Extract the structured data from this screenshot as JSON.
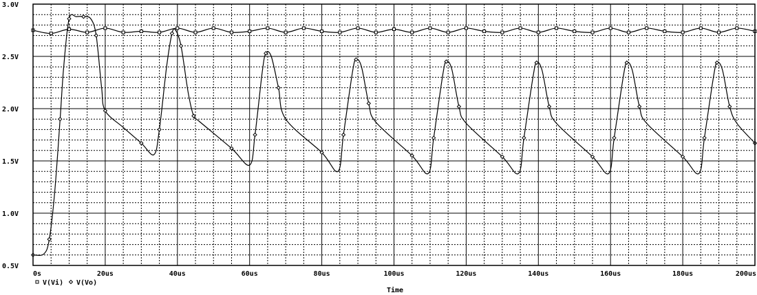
{
  "chart_data": {
    "type": "line",
    "xlabel": "Time",
    "ylabel": "",
    "xlim": [
      0,
      200
    ],
    "ylim": [
      0.5,
      3.0
    ],
    "x_unit": "us",
    "y_unit": "V",
    "grid": true,
    "legend_position": "bottom-left",
    "x_ticks": [
      "0s",
      "20us",
      "40us",
      "60us",
      "80us",
      "100us",
      "120us",
      "140us",
      "160us",
      "180us",
      "200us"
    ],
    "y_ticks": [
      "0.5V",
      "1.0V",
      "1.5V",
      "2.0V",
      "2.5V",
      "3.0V"
    ],
    "series": [
      {
        "name": "V(Vi)",
        "marker": "square",
        "x": [
          0,
          5,
          10,
          15,
          20,
          25,
          30,
          35,
          40,
          45,
          50,
          55,
          60,
          65,
          70,
          75,
          80,
          85,
          90,
          95,
          100,
          105,
          110,
          115,
          120,
          125,
          130,
          135,
          140,
          145,
          150,
          155,
          160,
          165,
          170,
          175,
          180,
          185,
          190,
          195,
          200
        ],
        "values": [
          2.75,
          2.72,
          2.76,
          2.73,
          2.77,
          2.73,
          2.74,
          2.73,
          2.77,
          2.73,
          2.77,
          2.73,
          2.74,
          2.77,
          2.73,
          2.77,
          2.74,
          2.73,
          2.77,
          2.73,
          2.76,
          2.73,
          2.77,
          2.73,
          2.77,
          2.74,
          2.73,
          2.77,
          2.73,
          2.77,
          2.74,
          2.73,
          2.77,
          2.73,
          2.77,
          2.74,
          2.73,
          2.77,
          2.73,
          2.77,
          2.74
        ]
      },
      {
        "name": "V(Vo)",
        "marker": "diamond",
        "x": [
          0,
          3,
          4.5,
          6,
          7.5,
          8.5,
          10,
          12,
          14,
          16,
          17.5,
          19,
          20,
          25,
          30,
          33.5,
          35,
          37,
          38.5,
          39.5,
          41,
          43,
          44.5,
          46,
          55,
          60,
          61.5,
          63.5,
          64.5,
          66,
          68,
          70,
          80,
          84.5,
          86,
          88.5,
          89.5,
          91,
          93,
          95,
          105,
          109.5,
          111,
          113.5,
          114.5,
          116,
          118,
          120,
          130,
          134.5,
          136,
          138.5,
          139.5,
          141,
          143,
          145,
          155,
          159.5,
          161,
          163.5,
          164.5,
          166,
          168,
          170,
          180,
          184.5,
          186,
          188.5,
          189.5,
          191,
          193,
          195,
          200
        ],
        "values": [
          0.6,
          0.61,
          0.75,
          1.2,
          1.9,
          2.4,
          2.86,
          2.88,
          2.88,
          2.86,
          2.7,
          2.2,
          1.98,
          1.82,
          1.67,
          1.56,
          1.8,
          2.4,
          2.72,
          2.75,
          2.6,
          2.15,
          1.93,
          1.88,
          1.62,
          1.46,
          1.75,
          2.35,
          2.53,
          2.5,
          2.2,
          1.9,
          1.58,
          1.4,
          1.75,
          2.35,
          2.47,
          2.4,
          2.05,
          1.87,
          1.55,
          1.38,
          1.72,
          2.32,
          2.45,
          2.38,
          2.02,
          1.86,
          1.54,
          1.38,
          1.72,
          2.3,
          2.44,
          2.37,
          2.02,
          1.86,
          1.54,
          1.38,
          1.72,
          2.3,
          2.44,
          2.37,
          2.02,
          1.86,
          1.54,
          1.38,
          1.72,
          2.3,
          2.44,
          2.37,
          2.02,
          1.86,
          1.67
        ]
      }
    ]
  }
}
